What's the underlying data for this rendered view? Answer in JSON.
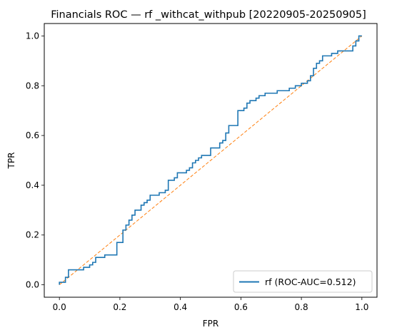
{
  "chart_data": {
    "type": "line",
    "title": "Financials ROC — rf _withcat_withpub [20220905-20250905]",
    "xlabel": "FPR",
    "ylabel": "TPR",
    "xlim": [
      -0.05,
      1.05
    ],
    "ylim": [
      -0.05,
      1.05
    ],
    "xticks": [
      "0.0",
      "0.2",
      "0.4",
      "0.6",
      "0.8",
      "1.0"
    ],
    "yticks": [
      "0.0",
      "0.2",
      "0.4",
      "0.6",
      "0.8",
      "1.0"
    ],
    "grid": false,
    "legend_position": "lower-right",
    "series": [
      {
        "name": "rf (ROC-AUC=0.512)",
        "color": "#1f77b4",
        "style": "step",
        "x": [
          0.0,
          0.0,
          0.02,
          0.02,
          0.03,
          0.03,
          0.05,
          0.05,
          0.08,
          0.08,
          0.1,
          0.1,
          0.11,
          0.11,
          0.12,
          0.12,
          0.15,
          0.15,
          0.19,
          0.19,
          0.21,
          0.21,
          0.22,
          0.22,
          0.23,
          0.23,
          0.24,
          0.24,
          0.25,
          0.25,
          0.27,
          0.27,
          0.28,
          0.28,
          0.29,
          0.29,
          0.3,
          0.3,
          0.33,
          0.33,
          0.35,
          0.35,
          0.36,
          0.36,
          0.38,
          0.38,
          0.39,
          0.39,
          0.42,
          0.42,
          0.43,
          0.43,
          0.44,
          0.44,
          0.45,
          0.45,
          0.46,
          0.46,
          0.47,
          0.47,
          0.48,
          0.48,
          0.5,
          0.5,
          0.53,
          0.53,
          0.54,
          0.54,
          0.55,
          0.55,
          0.56,
          0.56,
          0.59,
          0.59,
          0.61,
          0.61,
          0.62,
          0.62,
          0.63,
          0.63,
          0.65,
          0.65,
          0.66,
          0.66,
          0.67,
          0.67,
          0.68,
          0.68,
          0.72,
          0.72,
          0.76,
          0.76,
          0.78,
          0.78,
          0.8,
          0.8,
          0.82,
          0.82,
          0.83,
          0.83,
          0.84,
          0.84,
          0.85,
          0.85,
          0.86,
          0.86,
          0.87,
          0.87,
          0.9,
          0.9,
          0.92,
          0.92,
          0.97,
          0.97,
          0.98,
          0.98,
          0.99,
          0.99,
          1.0
        ],
        "y": [
          0.0,
          0.01,
          0.01,
          0.03,
          0.03,
          0.06,
          0.06,
          0.06,
          0.06,
          0.07,
          0.07,
          0.08,
          0.08,
          0.09,
          0.09,
          0.11,
          0.11,
          0.12,
          0.12,
          0.17,
          0.17,
          0.22,
          0.22,
          0.24,
          0.24,
          0.26,
          0.26,
          0.28,
          0.28,
          0.3,
          0.3,
          0.32,
          0.32,
          0.33,
          0.33,
          0.34,
          0.34,
          0.36,
          0.36,
          0.37,
          0.37,
          0.38,
          0.38,
          0.42,
          0.42,
          0.43,
          0.43,
          0.45,
          0.45,
          0.46,
          0.46,
          0.47,
          0.47,
          0.49,
          0.49,
          0.5,
          0.5,
          0.51,
          0.51,
          0.52,
          0.52,
          0.52,
          0.52,
          0.55,
          0.55,
          0.57,
          0.57,
          0.58,
          0.58,
          0.61,
          0.61,
          0.64,
          0.64,
          0.7,
          0.7,
          0.71,
          0.71,
          0.73,
          0.73,
          0.74,
          0.74,
          0.75,
          0.75,
          0.76,
          0.76,
          0.76,
          0.76,
          0.77,
          0.77,
          0.78,
          0.78,
          0.79,
          0.79,
          0.8,
          0.8,
          0.81,
          0.81,
          0.82,
          0.82,
          0.84,
          0.84,
          0.87,
          0.87,
          0.89,
          0.89,
          0.9,
          0.9,
          0.92,
          0.92,
          0.93,
          0.93,
          0.94,
          0.94,
          0.96,
          0.96,
          0.98,
          0.98,
          1.0,
          1.0
        ]
      },
      {
        "color": "#ff7f0e",
        "style": "dashed",
        "x": [
          0.0,
          1.0
        ],
        "y": [
          0.0,
          1.0
        ]
      }
    ]
  }
}
